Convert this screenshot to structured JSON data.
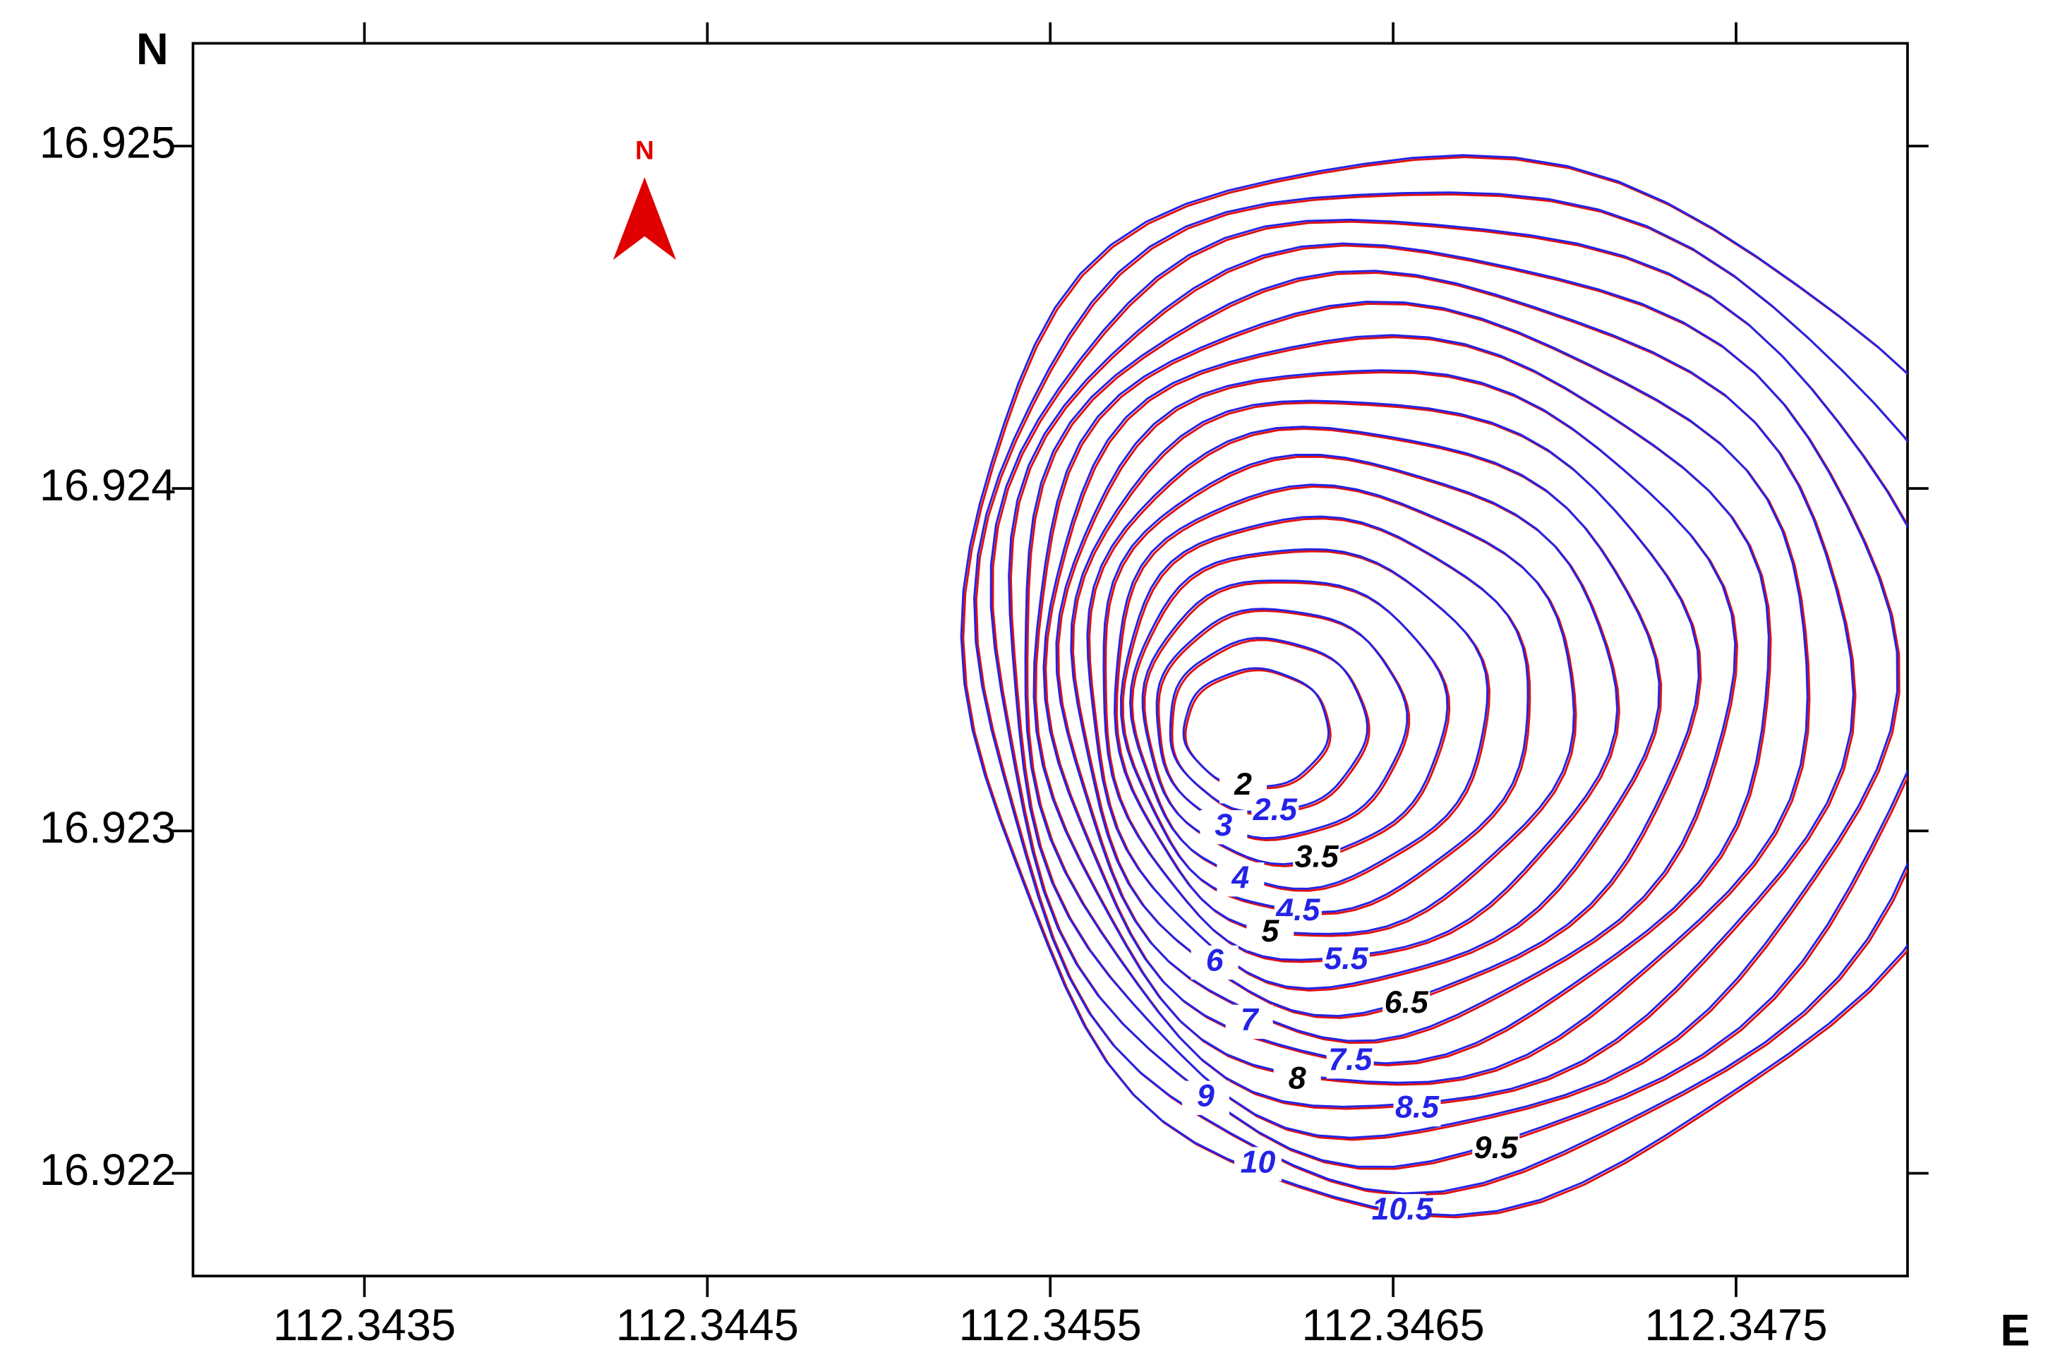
{
  "chart_data": {
    "type": "contour",
    "x_axis_label": "E",
    "y_axis_label": "N",
    "north_arrow_label": "N",
    "xlim": [
      112.343,
      112.348
    ],
    "ylim": [
      16.9217,
      16.9253
    ],
    "xticks": [
      112.3435,
      112.3445,
      112.3455,
      112.3465,
      112.3475
    ],
    "yticks": [
      16.922,
      16.923,
      16.924,
      16.925
    ],
    "minimum_x": 112.3461,
    "minimum_y": 16.9233,
    "levels": [
      2,
      2.5,
      3,
      3.5,
      4,
      4.5,
      5,
      5.5,
      6,
      6.5,
      7,
      7.5,
      8,
      8.5,
      9,
      9.5,
      10,
      10.5
    ],
    "line_color": "#2323e6",
    "shadow_color": "#e01010"
  }
}
